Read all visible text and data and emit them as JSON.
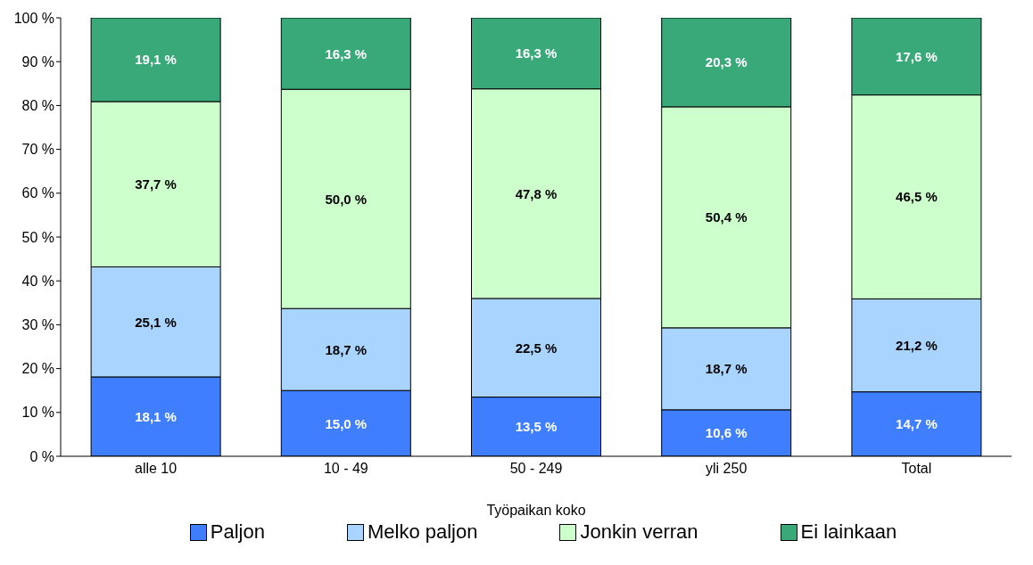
{
  "chart_data": {
    "type": "bar",
    "stacked": true,
    "xlabel": "Työpaikan koko",
    "categories": [
      "alle 10",
      "10 - 49",
      "50 - 249",
      "yli 250",
      "Total"
    ],
    "series": [
      {
        "name": "Paljon",
        "color": "#3f7fff",
        "values": [
          18.1,
          15.0,
          13.5,
          10.6,
          14.7
        ],
        "value_labels": [
          "18,1 %",
          "15,0 %",
          "13,5 %",
          "10,6 %",
          "14,7 %"
        ]
      },
      {
        "name": "Melko paljon",
        "color": "#a9d4ff",
        "values": [
          25.1,
          18.7,
          22.5,
          18.7,
          21.2
        ],
        "value_labels": [
          "25,1 %",
          "18,7 %",
          "22,5 %",
          "18,7 %",
          "21,2 %"
        ]
      },
      {
        "name": "Jonkin verran",
        "color": "#ccffcc",
        "values": [
          37.7,
          50.0,
          47.8,
          50.4,
          46.5
        ],
        "value_labels": [
          "37,7 %",
          "50,0 %",
          "47,8 %",
          "50,4 %",
          "46,5 %"
        ]
      },
      {
        "name": "Ei lainkaan",
        "color": "#3aa97a",
        "values": [
          19.1,
          16.3,
          16.3,
          20.3,
          17.6
        ],
        "value_labels": [
          "19,1 %",
          "16,3 %",
          "16,3 %",
          "20,3 %",
          "17,6 %"
        ]
      }
    ],
    "ylim": [
      0,
      100
    ],
    "yticks": [
      {
        "value": 0,
        "label": "0 %"
      },
      {
        "value": 10,
        "label": "10 %"
      },
      {
        "value": 20,
        "label": "20 %"
      },
      {
        "value": 30,
        "label": "30 %"
      },
      {
        "value": 40,
        "label": "40 %"
      },
      {
        "value": 50,
        "label": "50 %"
      },
      {
        "value": 60,
        "label": "60 %"
      },
      {
        "value": 70,
        "label": "70 %"
      },
      {
        "value": 80,
        "label": "80 %"
      },
      {
        "value": 90,
        "label": "90 %"
      },
      {
        "value": 100,
        "label": "100 %"
      }
    ],
    "grid": false,
    "legend": "bottom"
  }
}
